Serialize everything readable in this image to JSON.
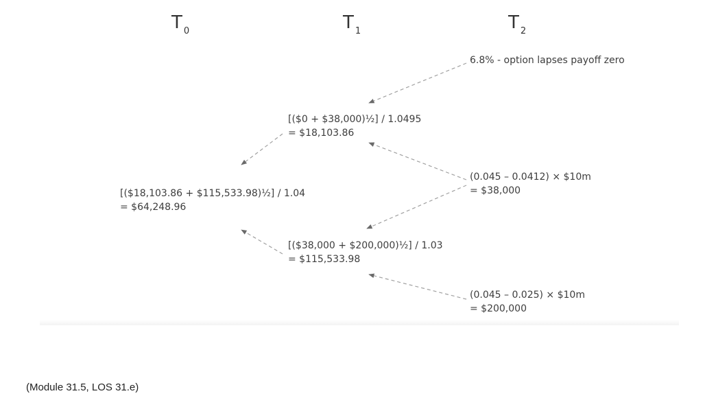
{
  "time_axis": [
    {
      "base": "T",
      "sub": "0"
    },
    {
      "base": "T",
      "sub": "1"
    },
    {
      "base": "T",
      "sub": "2"
    }
  ],
  "nodes": {
    "t2_top": {
      "line1": "6.8% - option lapses payoff zero"
    },
    "t1_top": {
      "line1": "[($0 + $38,000)½] / 1.0495",
      "line2": "= $18,103.86"
    },
    "t0": {
      "line1": "[($18,103.86 + $115,533.98)½] / 1.04",
      "line2": "= $64,248.96"
    },
    "t2_mid": {
      "line1": "(0.045 – 0.0412) × $10m",
      "line2": "= $38,000"
    },
    "t1_bottom": {
      "line1": "[($38,000 + $200,000)½] / 1.03",
      "line2": "= $115,533.98"
    },
    "t2_bottom": {
      "line1": "(0.045 – 0.025) × $10m",
      "line2": "= $200,000"
    }
  },
  "source": "(Module 31.5, LOS 31.e)",
  "colors": {
    "text": "#3d3d3d",
    "arrow": "#9a9a9a"
  }
}
